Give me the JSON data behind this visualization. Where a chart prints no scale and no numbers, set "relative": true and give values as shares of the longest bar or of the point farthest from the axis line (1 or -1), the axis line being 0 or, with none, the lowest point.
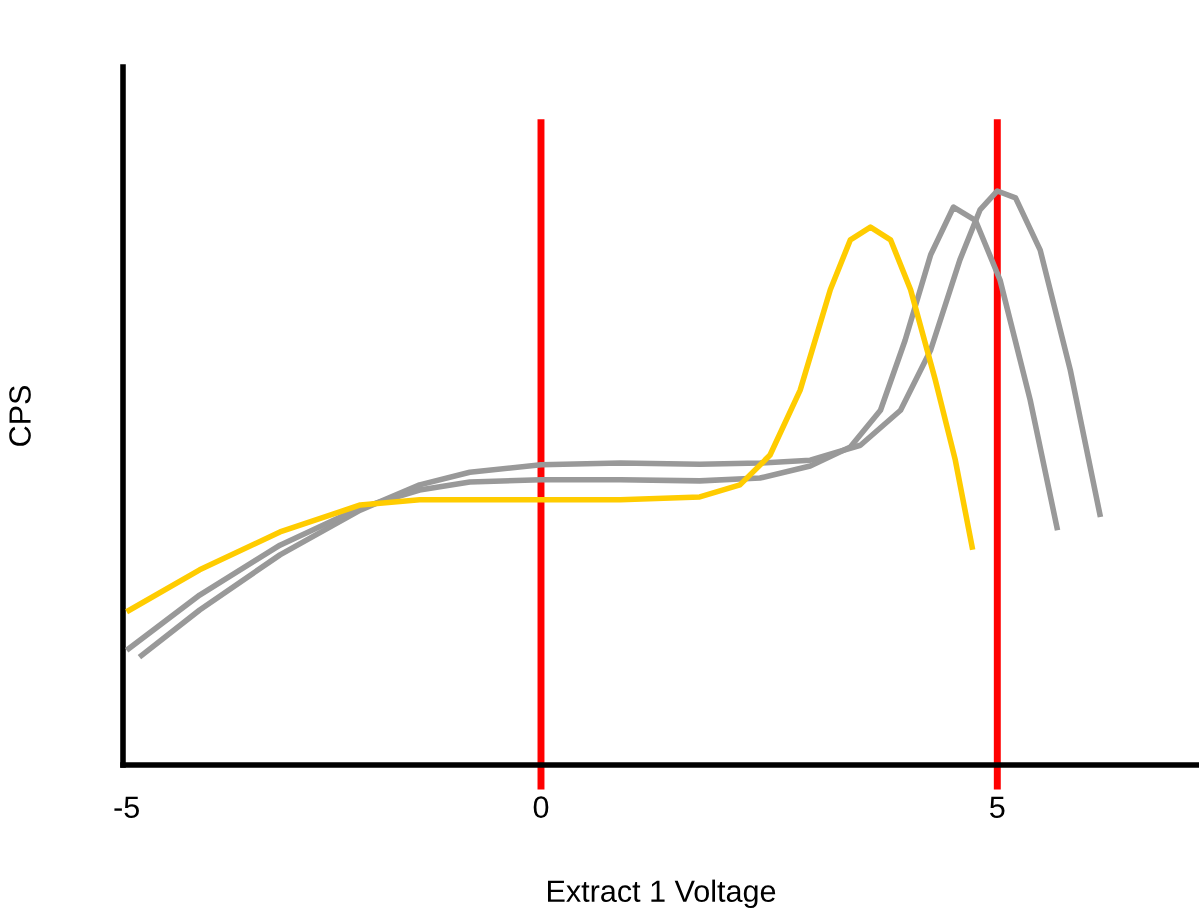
{
  "chart_data": {
    "type": "line",
    "xlabel": "Extract 1 Voltage",
    "ylabel": "CPS",
    "relative": true,
    "xlim": [
      -4.58,
      7.21
    ],
    "xticks": [
      {
        "value": -4.54,
        "label": "-5"
      },
      0,
      5
    ],
    "grid": false,
    "legend": false,
    "marker": "none",
    "line_style": "solid",
    "series": [
      {
        "color": "#999999",
        "x": [
          -4.4,
          -3.74,
          -2.86,
          -1.98,
          -1.33,
          -0.78,
          0,
          0.87,
          1.74,
          2.4,
          2.95,
          3.5,
          3.94,
          4.27,
          4.59,
          4.81,
          5,
          5.2,
          5.47,
          5.8,
          6.13
        ],
        "values": [
          0.188,
          0.27,
          0.366,
          0.444,
          0.488,
          0.51,
          0.523,
          0.526,
          0.524,
          0.526,
          0.531,
          0.557,
          0.618,
          0.723,
          0.88,
          0.967,
          1,
          0.988,
          0.897,
          0.688,
          0.432
        ]
      },
      {
        "color": "#999999",
        "x": [
          -4.54,
          -3.74,
          -2.86,
          -1.98,
          -1.33,
          -0.78,
          0,
          0.87,
          1.74,
          2.4,
          2.95,
          3.39,
          3.72,
          3.99,
          4.27,
          4.52,
          4.76,
          5.03,
          5.36,
          5.66
        ],
        "values": [
          0.2,
          0.296,
          0.383,
          0.448,
          0.479,
          0.493,
          0.497,
          0.497,
          0.495,
          0.5,
          0.521,
          0.554,
          0.618,
          0.74,
          0.889,
          0.972,
          0.949,
          0.845,
          0.636,
          0.409
        ]
      },
      {
        "color": "#ffcc00",
        "x": [
          -4.54,
          -3.74,
          -2.86,
          -1.98,
          -1.33,
          0,
          0.87,
          1.74,
          2.18,
          2.51,
          2.84,
          3.17,
          3.39,
          3.61,
          3.83,
          4.05,
          4.32,
          4.54,
          4.73
        ],
        "values": [
          0.267,
          0.34,
          0.406,
          0.453,
          0.462,
          0.462,
          0.462,
          0.467,
          0.488,
          0.54,
          0.653,
          0.828,
          0.915,
          0.937,
          0.915,
          0.828,
          0.671,
          0.531,
          0.375
        ]
      }
    ],
    "ref_lines": [
      {
        "axis": "x",
        "value": 0,
        "color": "#ff0000"
      },
      {
        "axis": "x",
        "value": 5,
        "color": "#ff0000"
      }
    ]
  }
}
